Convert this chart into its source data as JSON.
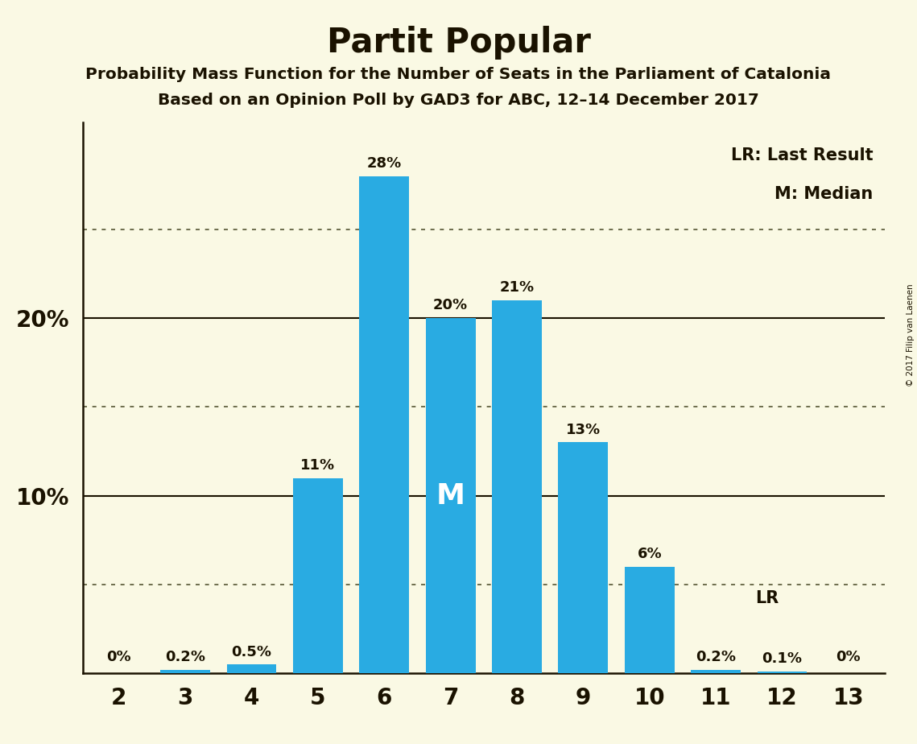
{
  "title": "Partit Popular",
  "subtitle1": "Probability Mass Function for the Number of Seats in the Parliament of Catalonia",
  "subtitle2": "Based on an Opinion Poll by GAD3 for ABC, 12–14 December 2017",
  "copyright": "© 2017 Filip van Laenen",
  "categories": [
    2,
    3,
    4,
    5,
    6,
    7,
    8,
    9,
    10,
    11,
    12,
    13
  ],
  "values": [
    0.0,
    0.2,
    0.5,
    11.0,
    28.0,
    20.0,
    21.0,
    13.0,
    6.0,
    0.2,
    0.1,
    0.0
  ],
  "bar_color": "#29ABE2",
  "background_color": "#FAF9E4",
  "label_color": "#1A1200",
  "bar_labels": [
    "0%",
    "0.2%",
    "0.5%",
    "11%",
    "28%",
    "20%",
    "21%",
    "13%",
    "6%",
    "0.2%",
    "0.1%",
    "0%"
  ],
  "median_bar_index": 5,
  "lr_bar_index": 9,
  "ylim": [
    0,
    31
  ],
  "solid_lines": [
    10,
    20
  ],
  "dotted_lines": [
    5,
    15,
    25
  ]
}
